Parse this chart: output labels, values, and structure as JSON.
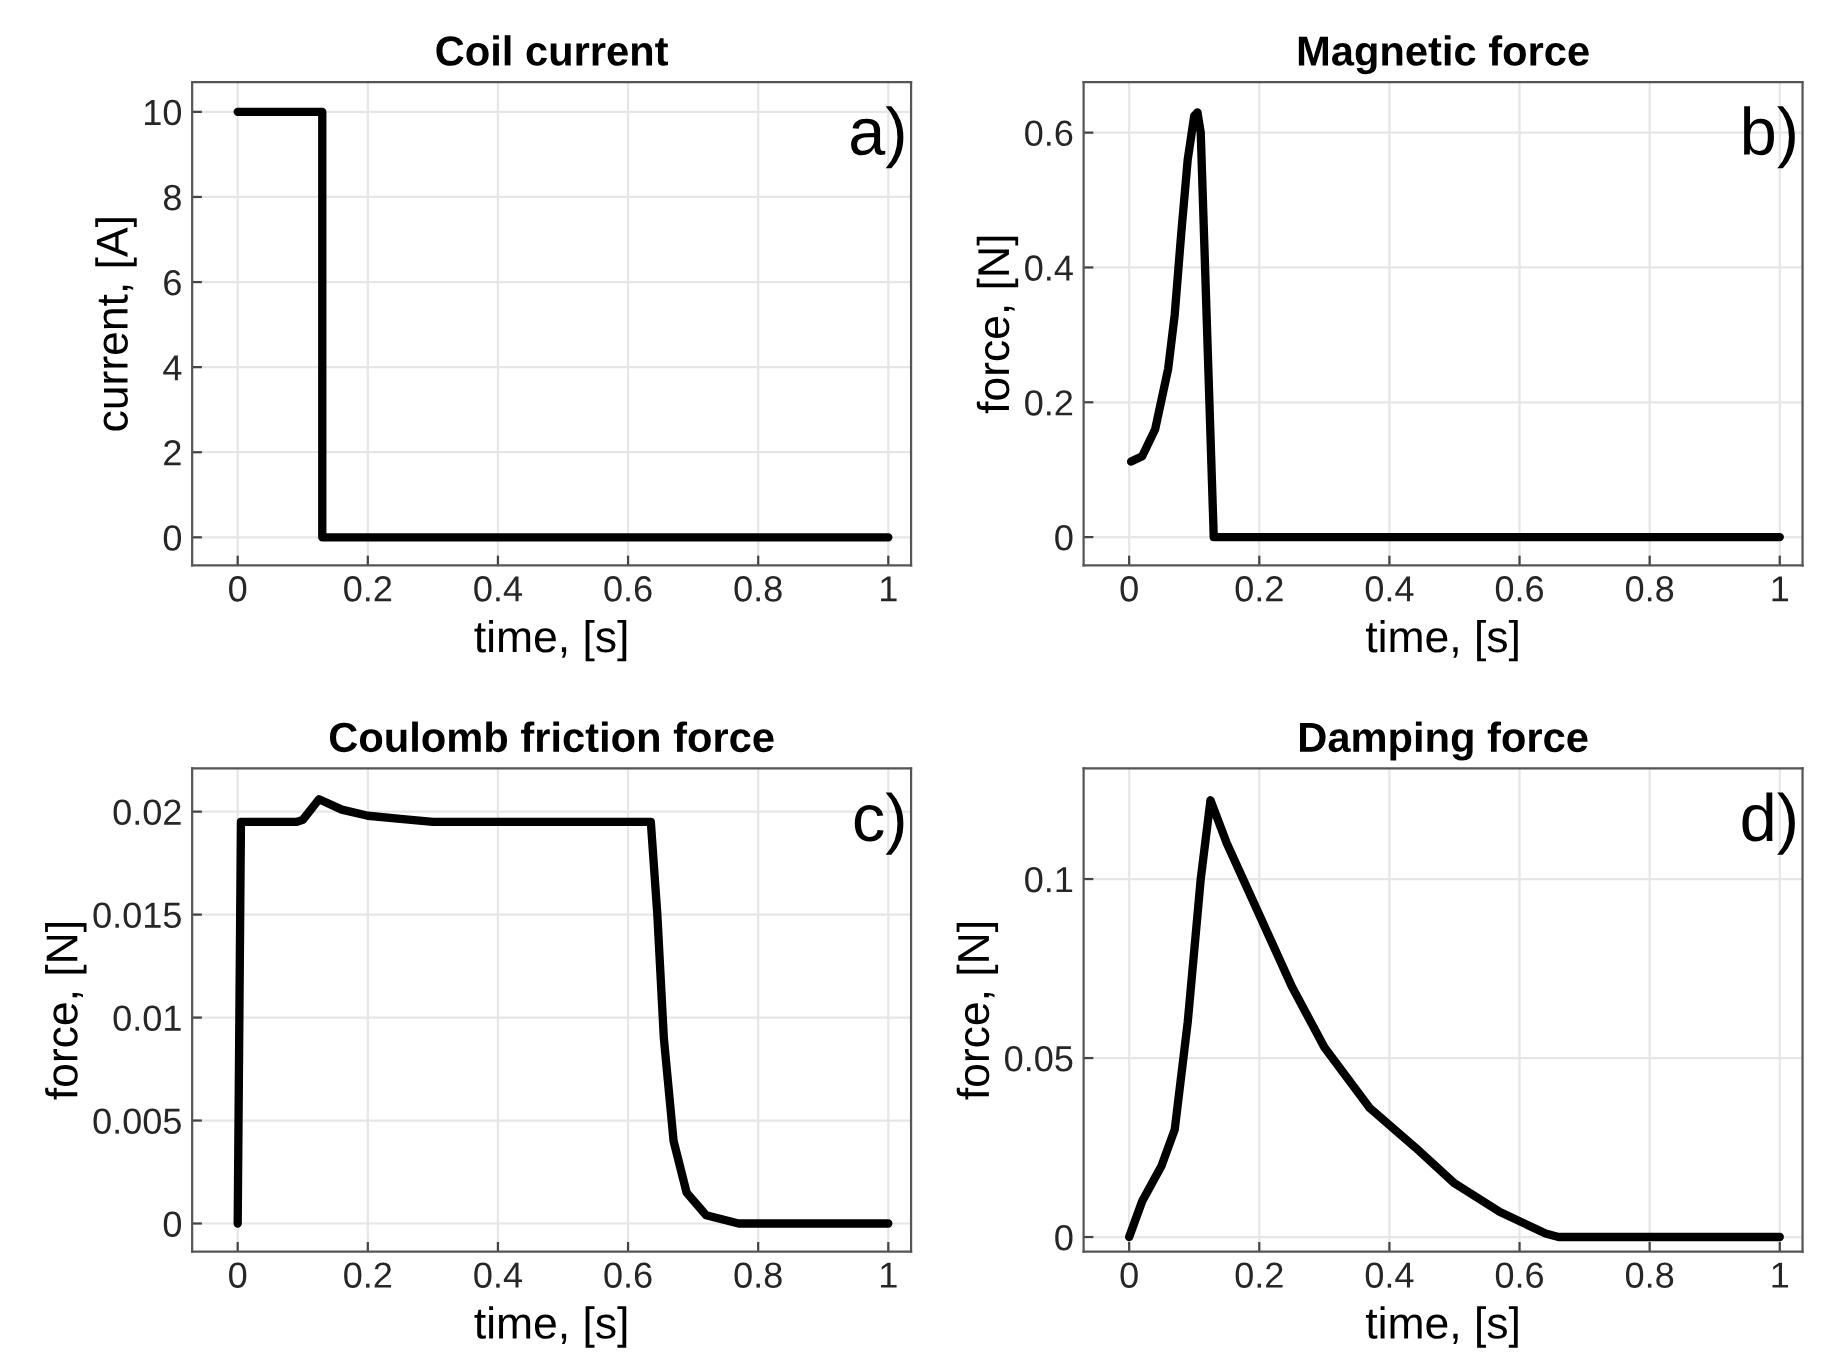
{
  "chart_data": [
    {
      "type": "line",
      "title": "Coil current",
      "xlabel": "time, [s]",
      "ylabel": "current, [A]",
      "annotations": [
        "a)"
      ],
      "grid": true,
      "xlim": [
        -0.07,
        1.035
      ],
      "ylim": [
        -0.66,
        10.7
      ],
      "xticks": [
        0,
        0.2,
        0.4,
        0.6,
        0.8,
        1
      ],
      "yticks": [
        0,
        2,
        4,
        6,
        8,
        10
      ],
      "series": [
        {
          "color": "#000000",
          "x": [
            0,
            0.13,
            0.13,
            1
          ],
          "values": [
            10,
            10,
            0,
            0
          ]
        }
      ]
    },
    {
      "type": "line",
      "title": "Magnetic force",
      "xlabel": "time, [s]",
      "ylabel": "force, [N]",
      "annotations": [
        "b)"
      ],
      "grid": true,
      "xlim": [
        -0.07,
        1.035
      ],
      "ylim": [
        -0.042,
        0.675
      ],
      "xticks": [
        0,
        0.2,
        0.4,
        0.6,
        0.8,
        1
      ],
      "yticks": [
        0,
        0.2,
        0.4,
        0.6
      ],
      "series": [
        {
          "color": "#000000",
          "x": [
            0.003,
            0.02,
            0.04,
            0.06,
            0.07,
            0.08,
            0.09,
            0.1,
            0.105,
            0.11,
            0.12,
            0.13,
            1
          ],
          "values": [
            0.112,
            0.12,
            0.16,
            0.25,
            0.33,
            0.45,
            0.56,
            0.625,
            0.63,
            0.6,
            0.3,
            0,
            0
          ]
        }
      ]
    },
    {
      "type": "line",
      "title": "Coulomb friction force",
      "xlabel": "time, [s]",
      "ylabel": "force, [N]",
      "annotations": [
        "c)"
      ],
      "grid": true,
      "xlim": [
        -0.07,
        1.035
      ],
      "ylim": [
        -0.00137,
        0.0221
      ],
      "xticks": [
        0,
        0.2,
        0.4,
        0.6,
        0.8,
        1
      ],
      "yticks": [
        0,
        0.005,
        0.01,
        0.015,
        0.02
      ],
      "series": [
        {
          "color": "#000000",
          "x": [
            0,
            0.005,
            0.09,
            0.1,
            0.125,
            0.16,
            0.2,
            0.25,
            0.3,
            0.635,
            0.645,
            0.655,
            0.67,
            0.69,
            0.72,
            0.77,
            1
          ],
          "values": [
            0,
            0.0195,
            0.0195,
            0.0196,
            0.0206,
            0.0201,
            0.0198,
            0.01965,
            0.0195,
            0.0195,
            0.015,
            0.009,
            0.004,
            0.0015,
            0.0004,
            0,
            0
          ]
        }
      ]
    },
    {
      "type": "line",
      "title": "Damping force",
      "xlabel": "time, [s]",
      "ylabel": "force, [N]",
      "annotations": [
        "d)"
      ],
      "grid": true,
      "xlim": [
        -0.07,
        1.035
      ],
      "ylim": [
        -0.0041,
        0.1309
      ],
      "xticks": [
        0,
        0.2,
        0.4,
        0.6,
        0.8,
        1
      ],
      "yticks": [
        0,
        0.05,
        0.1
      ],
      "series": [
        {
          "color": "#000000",
          "x": [
            0,
            0.02,
            0.05,
            0.07,
            0.09,
            0.11,
            0.125,
            0.15,
            0.2,
            0.25,
            0.3,
            0.37,
            0.44,
            0.5,
            0.57,
            0.64,
            0.66,
            1
          ],
          "values": [
            0,
            0.01,
            0.02,
            0.03,
            0.06,
            0.1,
            0.122,
            0.11,
            0.09,
            0.07,
            0.053,
            0.036,
            0.025,
            0.015,
            0.007,
            0.001,
            0,
            0
          ]
        }
      ]
    }
  ]
}
